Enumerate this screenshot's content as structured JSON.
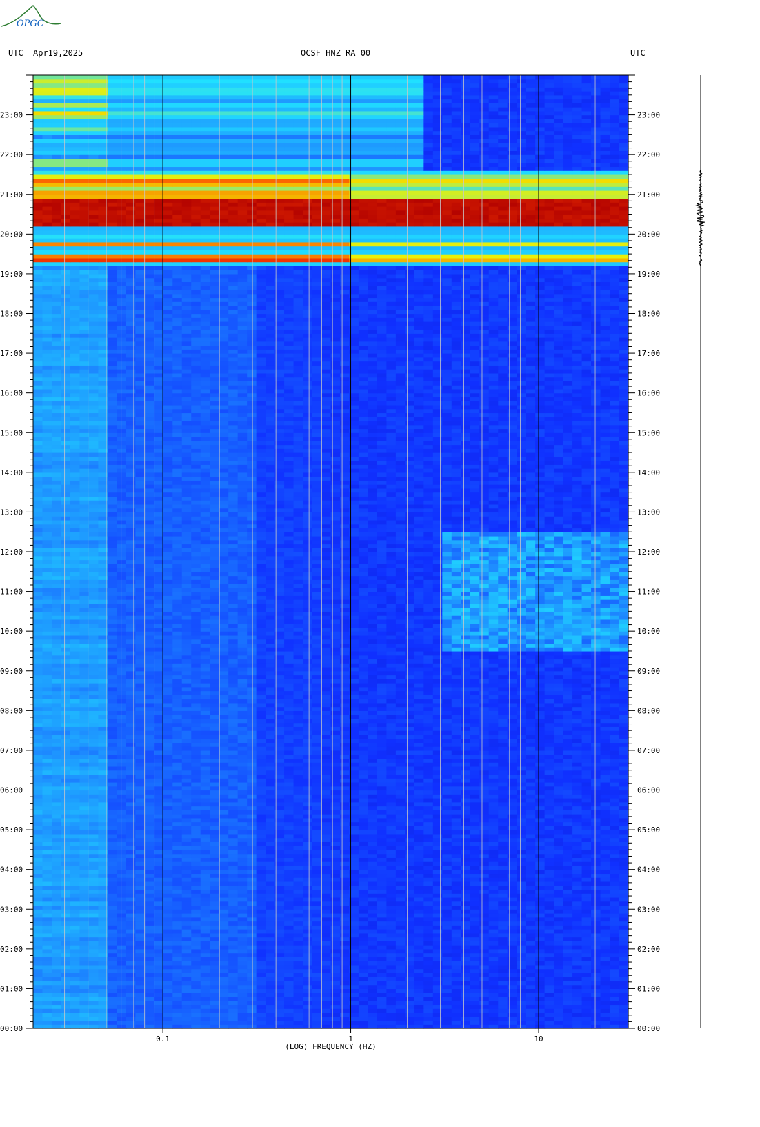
{
  "header": {
    "left_tz": "UTC",
    "date": "Apr19,2025",
    "station": "OCSF HNZ RA 00",
    "right_tz": "UTC"
  },
  "logo": {
    "text": "OPGC",
    "colors": [
      "#2e7d32",
      "#1565c0"
    ]
  },
  "chart_data": {
    "type": "heatmap",
    "title": "OCSF HNZ RA 00",
    "xlabel": "(LOG) FREQUENCY (HZ)",
    "ylabel": "",
    "x_scale": "log",
    "xlim": [
      0.0204,
      30
    ],
    "x_ticks": [
      {
        "value": 0.1,
        "label": "0.1"
      },
      {
        "value": 1,
        "label": "1"
      },
      {
        "value": 10,
        "label": "10"
      }
    ],
    "y_unit": "hours UTC",
    "ylim": [
      0,
      24
    ],
    "y_tick_labels": [
      "00:00",
      "01:00",
      "02:00",
      "03:00",
      "04:00",
      "05:00",
      "06:00",
      "07:00",
      "08:00",
      "09:00",
      "10:00",
      "11:00",
      "12:00",
      "13:00",
      "14:00",
      "15:00",
      "16:00",
      "17:00",
      "18:00",
      "19:00",
      "20:00",
      "21:00",
      "22:00",
      "23:00"
    ],
    "colormap": [
      "#0a0aa0",
      "#1030ff",
      "#1e90ff",
      "#20e0ff",
      "#f0f000",
      "#ff4000",
      "#b00000"
    ],
    "events": [
      {
        "start_h": 19.2,
        "end_h": 21.6,
        "peak_start_h": 20.2,
        "peak_end_h": 20.9,
        "description": "strong broadband signal"
      },
      {
        "start_h": 9.5,
        "end_h": 12.5,
        "fmin": 3,
        "fmax": 30,
        "description": "high-frequency noise"
      }
    ]
  }
}
